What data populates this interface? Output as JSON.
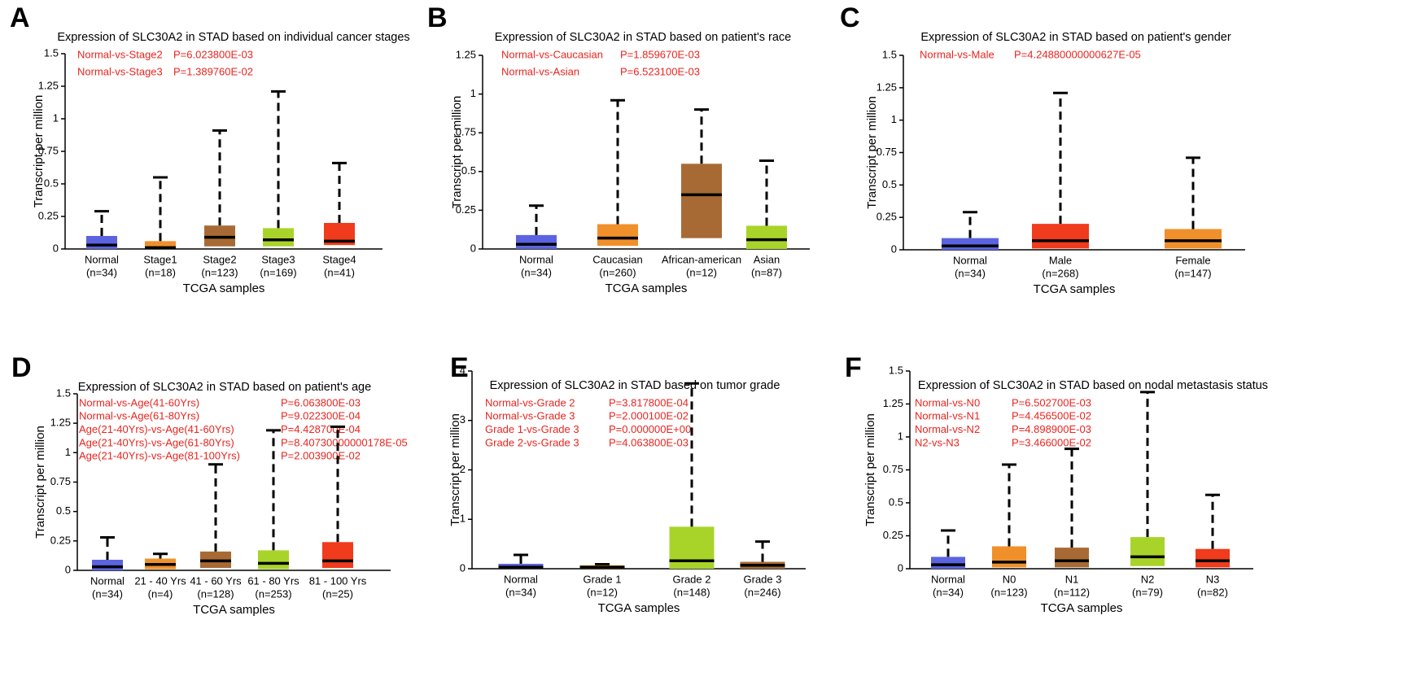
{
  "chart_data": [
    {
      "type": "box",
      "panel": "A",
      "title": "Expression of SLC30A2 in STAD based on individual cancer stages",
      "x_label": "TCGA samples",
      "y_label": "Transcript per million",
      "categories": [
        "Normal",
        "Stage1",
        "Stage2",
        "Stage3",
        "Stage4"
      ],
      "category_counts": [
        "(n=34)",
        "(n=18)",
        "(n=123)",
        "(n=169)",
        "(n=41)"
      ],
      "colors": [
        "#5b63e0",
        "#f0902a",
        "#a86a35",
        "#a8d42a",
        "#f03b1c"
      ],
      "boxes": [
        {
          "min": 0,
          "q1": 0,
          "median": 0.03,
          "q3": 0.1,
          "max": 0.29
        },
        {
          "min": 0,
          "q1": 0,
          "median": 0.01,
          "q3": 0.06,
          "max": 0.55
        },
        {
          "min": 0,
          "q1": 0.02,
          "median": 0.09,
          "q3": 0.18,
          "max": 0.91
        },
        {
          "min": 0,
          "q1": 0.02,
          "median": 0.07,
          "q3": 0.16,
          "max": 1.21
        },
        {
          "min": 0,
          "q1": 0.03,
          "median": 0.06,
          "q3": 0.2,
          "max": 0.66
        }
      ],
      "ylim": [
        0,
        1.5
      ],
      "yticks": [
        0,
        0.25,
        0.5,
        0.75,
        1,
        1.25,
        1.5
      ],
      "comparisons": [
        {
          "label": "Normal-vs-Stage2",
          "p": "P=6.023800E-03"
        },
        {
          "label": "Normal-vs-Stage3",
          "p": "P=1.389760E-02"
        }
      ]
    },
    {
      "type": "box",
      "panel": "B",
      "title": "Expression of SLC30A2 in STAD based on patient's race",
      "x_label": "TCGA samples",
      "y_label": "Transcript per million",
      "categories": [
        "Normal",
        "Caucasian",
        "African-american",
        "Asian"
      ],
      "category_counts": [
        "(n=34)",
        "(n=260)",
        "(n=12)",
        "(n=87)"
      ],
      "colors": [
        "#5b63e0",
        "#f0902a",
        "#a86a35",
        "#a8d42a"
      ],
      "boxes": [
        {
          "min": 0,
          "q1": 0,
          "median": 0.03,
          "q3": 0.09,
          "max": 0.28
        },
        {
          "min": 0,
          "q1": 0.02,
          "median": 0.07,
          "q3": 0.16,
          "max": 0.96
        },
        {
          "min": 0,
          "q1": 0.07,
          "median": 0.35,
          "q3": 0.55,
          "max": 0.9
        },
        {
          "min": 0,
          "q1": 0,
          "median": 0.06,
          "q3": 0.15,
          "max": 0.57
        }
      ],
      "ylim": [
        0,
        1.25
      ],
      "yticks": [
        0,
        0.25,
        0.5,
        0.75,
        1,
        1.25
      ],
      "comparisons": [
        {
          "label": "Normal-vs-Caucasian",
          "p": "P=1.859670E-03"
        },
        {
          "label": "Normal-vs-Asian",
          "p": "P=6.523100E-03"
        }
      ]
    },
    {
      "type": "box",
      "panel": "C",
      "title": "Expression of SLC30A2 in STAD based on patient's gender",
      "x_label": "TCGA samples",
      "y_label": "Transcript per million",
      "categories": [
        "Normal",
        "Male",
        "Female"
      ],
      "category_counts": [
        "(n=34)",
        "(n=268)",
        "(n=147)"
      ],
      "colors": [
        "#5b63e0",
        "#f03b1c",
        "#f0902a"
      ],
      "boxes": [
        {
          "min": 0,
          "q1": 0,
          "median": 0.03,
          "q3": 0.09,
          "max": 0.29
        },
        {
          "min": 0,
          "q1": 0.01,
          "median": 0.07,
          "q3": 0.2,
          "max": 1.21
        },
        {
          "min": 0,
          "q1": 0.01,
          "median": 0.07,
          "q3": 0.16,
          "max": 0.71
        }
      ],
      "ylim": [
        0,
        1.5
      ],
      "yticks": [
        0,
        0.25,
        0.5,
        0.75,
        1,
        1.25,
        1.5
      ],
      "comparisons": [
        {
          "label": "Normal-vs-Male",
          "p": "P=4.24880000000627E-05"
        }
      ]
    },
    {
      "type": "box",
      "panel": "D",
      "title": "Expression of SLC30A2 in STAD based on patient's age",
      "x_label": "TCGA samples",
      "y_label": "Transcript per million",
      "categories": [
        "Normal",
        "21 - 40 Yrs",
        "41 - 60 Yrs",
        "61 - 80 Yrs",
        "81 - 100 Yrs"
      ],
      "category_counts": [
        "(n=34)",
        "(n=4)",
        "(n=128)",
        "(n=253)",
        "(n=25)"
      ],
      "colors": [
        "#5b63e0",
        "#f0902a",
        "#a86a35",
        "#a8d42a",
        "#f03b1c"
      ],
      "boxes": [
        {
          "min": 0,
          "q1": 0,
          "median": 0.03,
          "q3": 0.09,
          "max": 0.28
        },
        {
          "min": 0,
          "q1": 0.01,
          "median": 0.05,
          "q3": 0.1,
          "max": 0.14
        },
        {
          "min": 0,
          "q1": 0.02,
          "median": 0.08,
          "q3": 0.16,
          "max": 0.9
        },
        {
          "min": 0,
          "q1": 0.01,
          "median": 0.06,
          "q3": 0.17,
          "max": 1.19
        },
        {
          "min": 0,
          "q1": 0.02,
          "median": 0.08,
          "q3": 0.24,
          "max": 1.22
        }
      ],
      "ylim": [
        0,
        1.5
      ],
      "yticks": [
        0,
        0.25,
        0.5,
        0.75,
        1,
        1.25,
        1.5
      ],
      "comparisons": [
        {
          "label": "Normal-vs-Age(41-60Yrs)",
          "p": "P=6.063800E-03"
        },
        {
          "label": "Normal-vs-Age(61-80Yrs)",
          "p": "P=9.022300E-04"
        },
        {
          "label": "Age(21-40Yrs)-vs-Age(41-60Yrs)",
          "p": "P=4.428700E-04"
        },
        {
          "label": "Age(21-40Yrs)-vs-Age(61-80Yrs)",
          "p": "P=8.40730000000178E-05"
        },
        {
          "label": "Age(21-40Yrs)-vs-Age(81-100Yrs)",
          "p": "P=2.003900E-02"
        }
      ]
    },
    {
      "type": "box",
      "panel": "E",
      "title": "Expression of SLC30A2 in STAD based on tumor grade",
      "x_label": "TCGA samples",
      "y_label": "Transcript per million",
      "categories": [
        "Normal",
        "Grade 1",
        "Grade 2",
        "Grade 3"
      ],
      "category_counts": [
        "(n=34)",
        "(n=12)",
        "(n=148)",
        "(n=246)"
      ],
      "colors": [
        "#5b63e0",
        "#f0902a",
        "#a8d42a",
        "#a86a35"
      ],
      "boxes": [
        {
          "min": 0,
          "q1": 0,
          "median": 0.03,
          "q3": 0.1,
          "max": 0.28
        },
        {
          "min": 0,
          "q1": 0,
          "median": 0.03,
          "q3": 0.07,
          "max": 0.09
        },
        {
          "min": 0,
          "q1": 0,
          "median": 0.16,
          "q3": 0.85,
          "max": 3.75
        },
        {
          "min": 0,
          "q1": 0,
          "median": 0.07,
          "q3": 0.14,
          "max": 0.55
        }
      ],
      "ylim": [
        0,
        4
      ],
      "yticks": [
        0,
        1,
        2,
        3,
        4
      ],
      "comparisons": [
        {
          "label": "Normal-vs-Grade 2",
          "p": "P=3.817800E-04"
        },
        {
          "label": "Normal-vs-Grade 3",
          "p": "P=2.000100E-02"
        },
        {
          "label": "Grade 1-vs-Grade 3",
          "p": "P=0.000000E+00"
        },
        {
          "label": "Grade 2-vs-Grade 3",
          "p": "P=4.063800E-03"
        }
      ]
    },
    {
      "type": "box",
      "panel": "F",
      "title": "Expression of SLC30A2 in STAD based on nodal metastasis status",
      "x_label": "TCGA samples",
      "y_label": "Transcript per million",
      "categories": [
        "Normal",
        "N0",
        "N1",
        "N2",
        "N3"
      ],
      "category_counts": [
        "(n=34)",
        "(n=123)",
        "(n=112)",
        "(n=79)",
        "(n=82)"
      ],
      "colors": [
        "#5b63e0",
        "#f0902a",
        "#a86a35",
        "#a8d42a",
        "#f03b1c"
      ],
      "boxes": [
        {
          "min": 0,
          "q1": 0,
          "median": 0.03,
          "q3": 0.09,
          "max": 0.29
        },
        {
          "min": 0,
          "q1": 0.01,
          "median": 0.05,
          "q3": 0.17,
          "max": 0.79
        },
        {
          "min": 0,
          "q1": 0.01,
          "median": 0.06,
          "q3": 0.16,
          "max": 0.91
        },
        {
          "min": 0,
          "q1": 0.02,
          "median": 0.09,
          "q3": 0.24,
          "max": 1.34
        },
        {
          "min": 0,
          "q1": 0.01,
          "median": 0.06,
          "q3": 0.15,
          "max": 0.56
        }
      ],
      "ylim": [
        0,
        1.5
      ],
      "yticks": [
        0,
        0.25,
        0.5,
        0.75,
        1,
        1.25,
        1.5
      ],
      "comparisons": [
        {
          "label": "Normal-vs-N0",
          "p": "P=6.502700E-03"
        },
        {
          "label": "Normal-vs-N1",
          "p": "P=4.456500E-02"
        },
        {
          "label": "Normal-vs-N2",
          "p": "P=4.898900E-03"
        },
        {
          "label": "N2-vs-N3",
          "p": "P=3.466000E-02"
        }
      ]
    }
  ]
}
